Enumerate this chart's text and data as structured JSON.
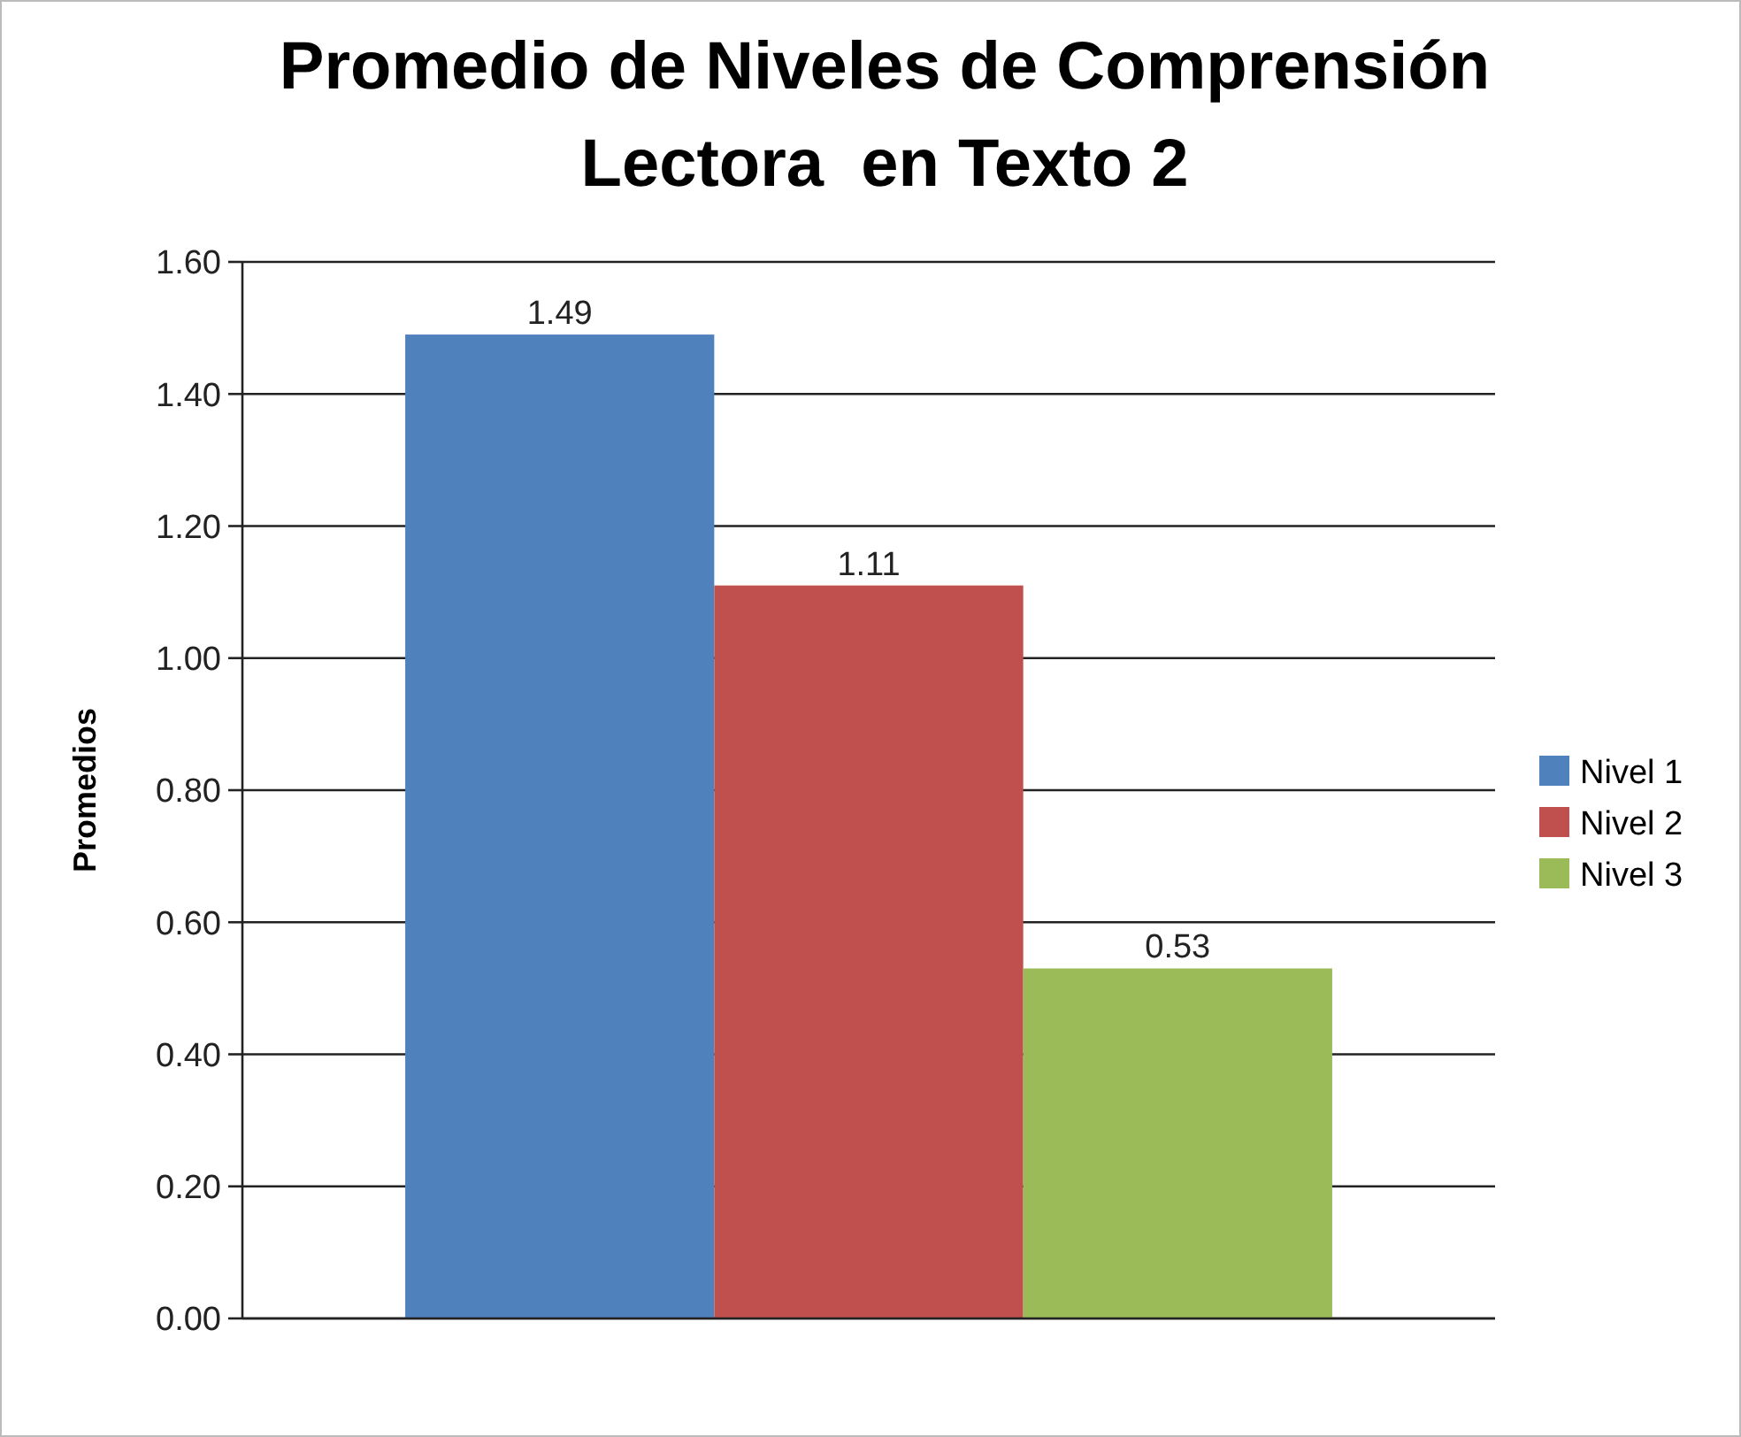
{
  "chart_data": {
    "type": "bar",
    "title": "Promedio de Niveles de Comprensión Lectora  en Texto 2",
    "ylabel": "Promedios",
    "categories": [
      null
    ],
    "series": [
      {
        "name": "Nivel 1",
        "color": "#4f81bd",
        "values": [
          1.49
        ]
      },
      {
        "name": "Nivel 2",
        "color": "#c0504d",
        "values": [
          1.11
        ]
      },
      {
        "name": "Nivel 3",
        "color": "#9bbb59",
        "values": [
          0.53
        ]
      }
    ],
    "ylim": [
      0,
      1.6
    ],
    "yticks": [
      {
        "value": 0,
        "label": "0.00"
      },
      {
        "value": 0.2,
        "label": "0.20"
      },
      {
        "value": 0.4,
        "label": "0.40"
      },
      {
        "value": 0.6,
        "label": "0.60"
      },
      {
        "value": 0.8,
        "label": "0.80"
      },
      {
        "value": 1,
        "label": "1.00"
      },
      {
        "value": 1.2,
        "label": "1.20"
      },
      {
        "value": 1.4,
        "label": "1.40"
      },
      {
        "value": 1.6,
        "label": "1.60"
      }
    ],
    "grid": "y",
    "legend": "right",
    "data_labels": true
  }
}
